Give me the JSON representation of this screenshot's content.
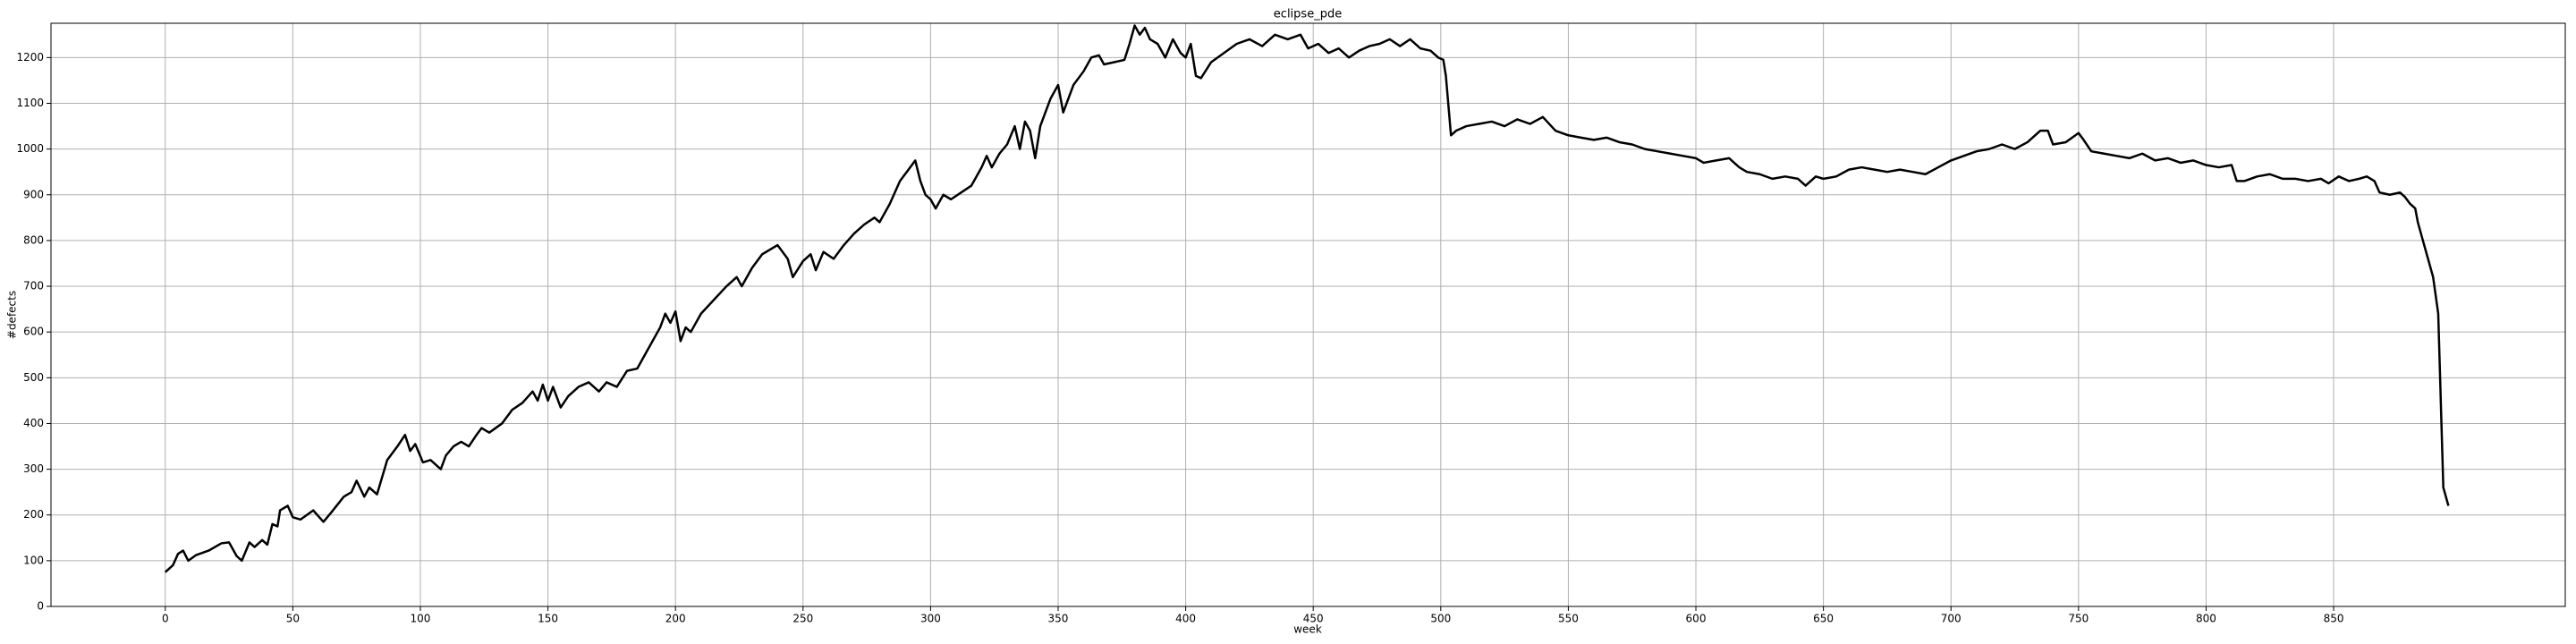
{
  "chart_data": {
    "type": "line",
    "title": "eclipse_pde",
    "x_label": "week",
    "y_label": "#defects",
    "x": [
      0,
      3,
      5,
      7,
      9,
      12,
      17,
      22,
      25,
      28,
      30,
      33,
      35,
      38,
      40,
      42,
      44,
      45,
      48,
      50,
      53,
      58,
      62,
      65,
      70,
      73,
      75,
      78,
      80,
      83,
      87,
      91,
      94,
      96,
      98,
      101,
      104,
      108,
      110,
      113,
      116,
      119,
      122,
      124,
      127,
      132,
      136,
      140,
      144,
      146,
      148,
      150,
      152,
      155,
      158,
      162,
      166,
      170,
      173,
      177,
      181,
      185,
      188,
      191,
      194,
      196,
      198,
      200,
      202,
      204,
      206,
      210,
      215,
      220,
      224,
      226,
      230,
      234,
      240,
      244,
      246,
      250,
      253,
      255,
      258,
      262,
      266,
      270,
      274,
      278,
      280,
      284,
      288,
      292,
      294,
      296,
      298,
      300,
      302,
      305,
      308,
      312,
      316,
      320,
      322,
      324,
      327,
      330,
      333,
      335,
      337,
      339,
      341,
      343,
      347,
      350,
      352,
      356,
      360,
      363,
      366,
      368,
      372,
      376,
      378,
      380,
      382,
      384,
      386,
      389,
      392,
      395,
      398,
      400,
      402,
      404,
      406,
      410,
      415,
      420,
      425,
      430,
      435,
      440,
      445,
      448,
      452,
      456,
      460,
      464,
      468,
      472,
      476,
      480,
      484,
      488,
      492,
      496,
      499,
      501,
      502,
      504,
      506,
      510,
      515,
      520,
      525,
      530,
      535,
      540,
      545,
      550,
      555,
      560,
      565,
      570,
      575,
      580,
      585,
      590,
      595,
      600,
      603,
      608,
      613,
      617,
      620,
      625,
      630,
      635,
      640,
      643,
      647,
      650,
      655,
      660,
      665,
      670,
      675,
      680,
      685,
      690,
      695,
      700,
      705,
      710,
      715,
      720,
      725,
      730,
      735,
      738,
      740,
      745,
      750,
      752,
      755,
      760,
      765,
      770,
      775,
      780,
      785,
      790,
      795,
      800,
      805,
      810,
      812,
      815,
      820,
      825,
      830,
      835,
      840,
      845,
      848,
      852,
      856,
      860,
      863,
      866,
      868,
      872,
      876,
      878,
      880,
      882,
      883,
      885,
      887,
      889,
      891,
      893,
      895
    ],
    "values": [
      75,
      90,
      115,
      122,
      100,
      112,
      122,
      138,
      140,
      110,
      100,
      140,
      130,
      145,
      135,
      180,
      175,
      210,
      220,
      195,
      190,
      210,
      185,
      205,
      240,
      250,
      275,
      240,
      260,
      245,
      320,
      350,
      375,
      340,
      355,
      315,
      320,
      300,
      330,
      350,
      360,
      350,
      375,
      390,
      380,
      400,
      430,
      445,
      470,
      450,
      485,
      450,
      480,
      435,
      460,
      480,
      490,
      470,
      490,
      480,
      515,
      520,
      550,
      580,
      610,
      640,
      620,
      645,
      580,
      610,
      600,
      640,
      670,
      700,
      720,
      700,
      740,
      770,
      790,
      760,
      720,
      755,
      770,
      735,
      775,
      760,
      790,
      815,
      835,
      850,
      840,
      880,
      930,
      960,
      975,
      930,
      900,
      890,
      870,
      900,
      890,
      905,
      920,
      960,
      985,
      960,
      990,
      1010,
      1050,
      1000,
      1060,
      1040,
      980,
      1050,
      1110,
      1140,
      1080,
      1140,
      1170,
      1200,
      1205,
      1185,
      1190,
      1195,
      1230,
      1270,
      1250,
      1265,
      1240,
      1230,
      1200,
      1240,
      1210,
      1200,
      1230,
      1160,
      1155,
      1190,
      1210,
      1230,
      1240,
      1225,
      1250,
      1240,
      1250,
      1220,
      1230,
      1210,
      1220,
      1200,
      1215,
      1225,
      1230,
      1240,
      1225,
      1240,
      1220,
      1215,
      1200,
      1195,
      1160,
      1030,
      1040,
      1050,
      1055,
      1060,
      1050,
      1065,
      1055,
      1070,
      1040,
      1030,
      1025,
      1020,
      1025,
      1015,
      1010,
      1000,
      995,
      990,
      985,
      980,
      970,
      975,
      980,
      960,
      950,
      945,
      935,
      940,
      935,
      920,
      940,
      935,
      940,
      955,
      960,
      955,
      950,
      955,
      950,
      945,
      960,
      975,
      985,
      995,
      1000,
      1010,
      1000,
      1015,
      1040,
      1040,
      1010,
      1015,
      1035,
      1020,
      995,
      990,
      985,
      980,
      990,
      975,
      980,
      970,
      975,
      965,
      960,
      965,
      930,
      930,
      940,
      945,
      935,
      935,
      930,
      935,
      925,
      940,
      930,
      935,
      940,
      930,
      905,
      900,
      905,
      895,
      880,
      870,
      840,
      800,
      760,
      720,
      640,
      260,
      220
    ],
    "color": "#000000",
    "xlim": [
      -44.8,
      940.8
    ],
    "xticks": [
      0,
      50,
      100,
      150,
      200,
      250,
      300,
      350,
      400,
      450,
      500,
      550,
      600,
      650,
      700,
      750,
      800,
      850
    ],
    "ylim": [
      0,
      1275
    ],
    "yticks": [
      0,
      100,
      200,
      300,
      400,
      500,
      600,
      700,
      800,
      900,
      1000,
      1100,
      1200
    ],
    "grid": true
  }
}
